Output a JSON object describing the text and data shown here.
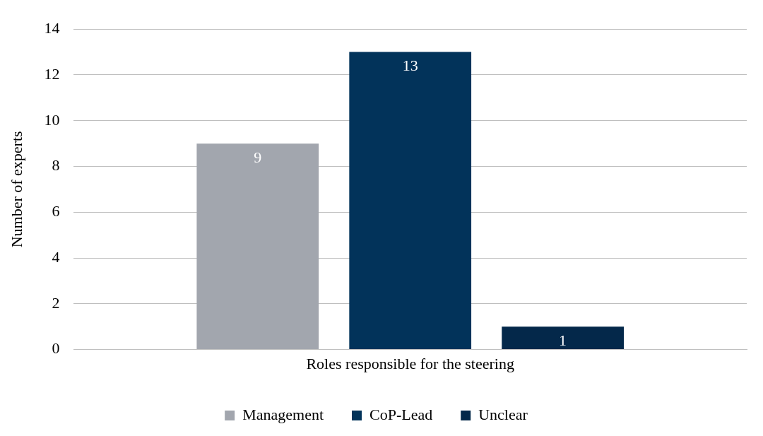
{
  "chart_data": {
    "type": "bar",
    "ylabel": "Number of experts",
    "categories": [
      "Roles responsible for the steering"
    ],
    "series": [
      {
        "name": "Management",
        "color": "#a2a6ae",
        "values": [
          9
        ]
      },
      {
        "name": "CoP-Lead",
        "color": "#02335a",
        "values": [
          13
        ]
      },
      {
        "name": "Unclear",
        "color": "#04284a",
        "values": [
          1
        ]
      }
    ],
    "ylim": [
      0,
      14
    ],
    "yticks": [
      0,
      2,
      4,
      6,
      8,
      10,
      12,
      14
    ],
    "grid": "y",
    "legend": "bottom",
    "data_labels": true
  }
}
